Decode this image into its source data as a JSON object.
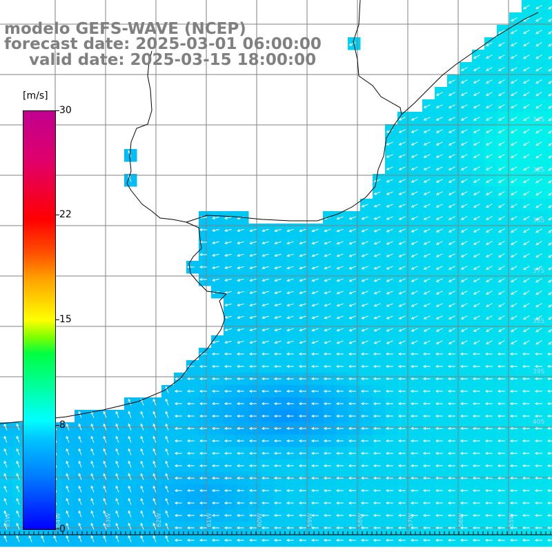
{
  "title": {
    "line1": "modelo GEFS-WAVE (NCEP)",
    "line2": "forecast date: 2025-03-01 06:00:00",
    "line3": "valid date: 2025-03-15 18:00:00"
  },
  "colorbar": {
    "unit": "[m/s]",
    "ticks": [
      "30",
      "22",
      "15",
      "8",
      "0"
    ],
    "colors": [
      "#0000ff",
      "#0080ff",
      "#00c8ff",
      "#00ffff",
      "#00ff40",
      "#ffff00",
      "#ff5000",
      "#ff0000",
      "#c00090"
    ]
  },
  "map": {
    "land_color": "#ffffff",
    "coast_color": "#000000",
    "grid_color": "#808080",
    "arrow_color": "#ffffff",
    "latitude_labels": [
      "34S",
      "35S",
      "36S",
      "37S",
      "38S",
      "39S",
      "40S"
    ],
    "longitude_labels": [
      "65W",
      "64W",
      "63W",
      "62W",
      "61W",
      "60W",
      "59W",
      "58W",
      "57W",
      "56W",
      "55W"
    ]
  }
}
